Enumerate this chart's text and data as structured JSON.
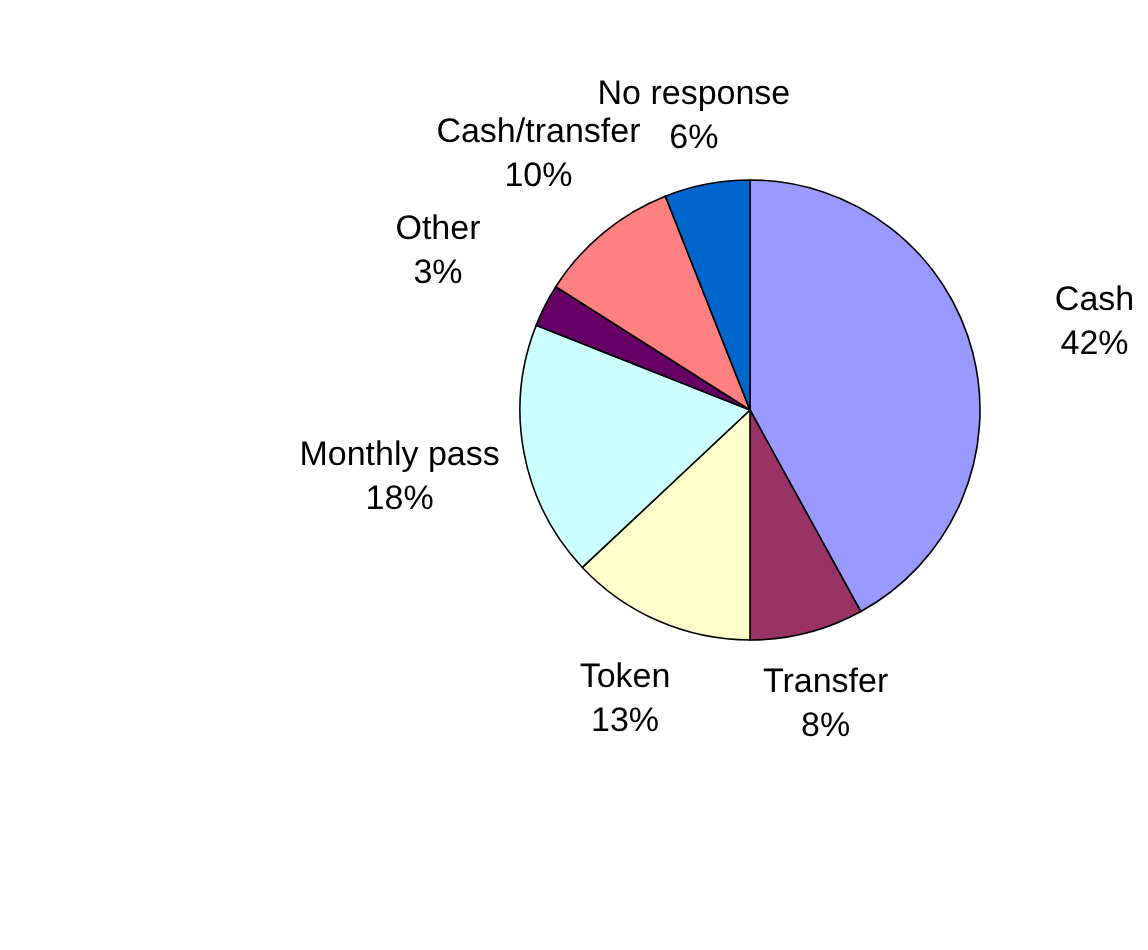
{
  "chart_data": {
    "type": "pie",
    "categories": [
      "Cash",
      "Transfer",
      "Token",
      "Monthly pass",
      "Other",
      "Cash/transfer",
      "No response"
    ],
    "values": [
      42,
      8,
      13,
      18,
      3,
      10,
      6
    ],
    "colors": [
      "#9999ff",
      "#993366",
      "#ffffcc",
      "#ccffff",
      "#660066",
      "#ff8080",
      "#0066cc"
    ],
    "value_labels": [
      "42%",
      "8%",
      "13%",
      "18%",
      "3%",
      "10%",
      "6%"
    ]
  }
}
